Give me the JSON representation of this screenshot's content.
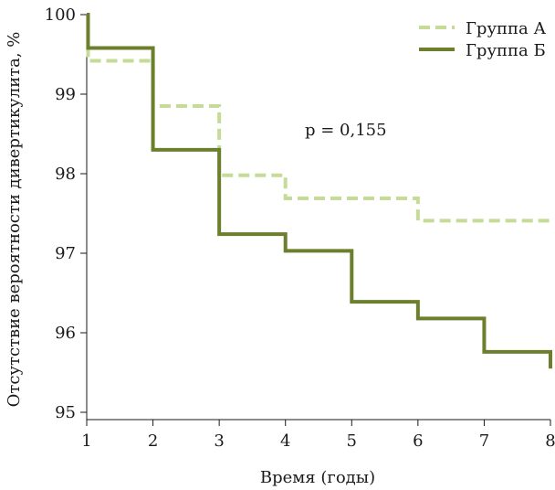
{
  "chart_data": {
    "type": "line",
    "step": true,
    "title": "",
    "xlabel": "Время (годы)",
    "ylabel": "Отсутствие вероятности дивертикулита, %",
    "xlim": [
      1,
      8
    ],
    "ylim": [
      95,
      100
    ],
    "x_ticks": [
      1,
      2,
      3,
      4,
      5,
      6,
      7,
      8
    ],
    "y_ticks": [
      95,
      96,
      97,
      98,
      99,
      100
    ],
    "annotation": "p = 0,155",
    "grid": false,
    "legend_position": "top-right",
    "series": [
      {
        "name": "Группа А",
        "color": "#c5dc96",
        "line_style": "dashed",
        "x": [
          1,
          1.02,
          2,
          3,
          4,
          6,
          8
        ],
        "y": [
          100,
          99.42,
          98.85,
          97.98,
          97.69,
          97.41,
          97.41
        ]
      },
      {
        "name": "Группа Б",
        "color": "#6b7f2c",
        "line_style": "solid",
        "x": [
          1,
          1.02,
          2,
          3,
          4,
          5,
          6,
          7,
          8
        ],
        "y": [
          100,
          99.58,
          98.3,
          97.24,
          97.03,
          96.39,
          96.18,
          95.76,
          95.55
        ]
      }
    ]
  }
}
